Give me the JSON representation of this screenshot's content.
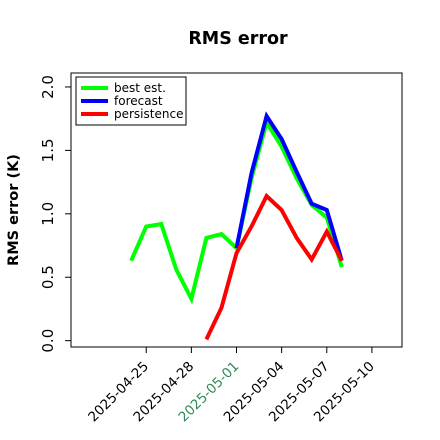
{
  "chart_data": {
    "type": "line",
    "title": "RMS error",
    "xlabel": "",
    "ylabel": "RMS error (K)",
    "xlim": [
      "2025-04-20",
      "2025-05-12"
    ],
    "ylim": [
      -0.05,
      2.11
    ],
    "x_ticks": [
      {
        "label": "2025-04-25",
        "date": "2025-04-25",
        "color": "#000000"
      },
      {
        "label": "2025-04-28",
        "date": "2025-04-28",
        "color": "#000000"
      },
      {
        "label": "2025-05-01",
        "date": "2025-05-01",
        "color": "#2e8b57"
      },
      {
        "label": "2025-05-04",
        "date": "2025-05-04",
        "color": "#000000"
      },
      {
        "label": "2025-05-07",
        "date": "2025-05-07",
        "color": "#000000"
      },
      {
        "label": "2025-05-10",
        "date": "2025-05-10",
        "color": "#000000"
      }
    ],
    "y_ticks": [
      {
        "label": "0.0",
        "value": 0.0
      },
      {
        "label": "0.5",
        "value": 0.5
      },
      {
        "label": "1.0",
        "value": 1.0
      },
      {
        "label": "1.5",
        "value": 1.5
      },
      {
        "label": "2.0",
        "value": 2.0
      }
    ],
    "grid": false,
    "legend_position": "top-left",
    "series": [
      {
        "name": "best est.",
        "color": "#00ff00",
        "x": [
          "2025-04-24",
          "2025-04-25",
          "2025-04-26",
          "2025-04-27",
          "2025-04-28",
          "2025-04-29",
          "2025-04-30",
          "2025-05-01",
          "2025-05-02",
          "2025-05-03",
          "2025-05-04",
          "2025-05-05",
          "2025-05-06",
          "2025-05-07",
          "2025-05-08"
        ],
        "y": [
          0.63,
          0.9,
          0.92,
          0.56,
          0.33,
          0.81,
          0.84,
          0.73,
          1.28,
          1.72,
          1.53,
          1.28,
          1.07,
          0.97,
          0.58
        ]
      },
      {
        "name": "forecast",
        "color": "#0000ff",
        "x": [
          "2025-05-01",
          "2025-05-02",
          "2025-05-03",
          "2025-05-04",
          "2025-05-05",
          "2025-05-06",
          "2025-05-07",
          "2025-05-08"
        ],
        "y": [
          0.73,
          1.32,
          1.77,
          1.59,
          1.33,
          1.08,
          1.03,
          0.63
        ]
      },
      {
        "name": "persistence",
        "color": "#ff0000",
        "x": [
          "2025-04-29",
          "2025-04-30",
          "2025-05-01",
          "2025-05-02",
          "2025-05-03",
          "2025-05-04",
          "2025-05-05",
          "2025-05-06",
          "2025-05-07",
          "2025-05-08"
        ],
        "y": [
          0.01,
          0.26,
          0.69,
          0.9,
          1.14,
          1.03,
          0.81,
          0.64,
          0.86,
          0.63
        ]
      }
    ]
  }
}
